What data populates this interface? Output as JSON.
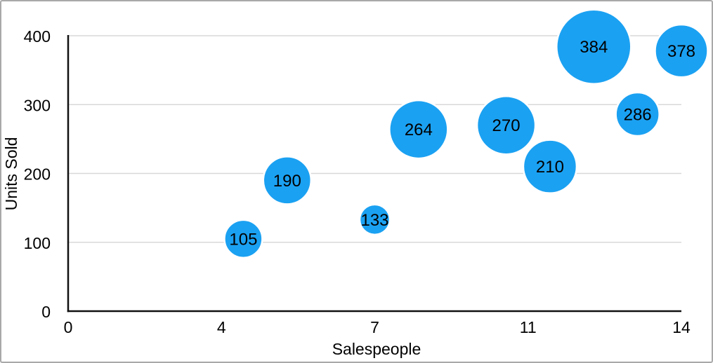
{
  "frame": {
    "background": "#ffffff",
    "border_color": "#a9a9a9"
  },
  "chart_data": {
    "type": "scatter",
    "variant": "bubble",
    "title": "",
    "xlabel": "Salespeople",
    "ylabel": "Units Sold",
    "xlim": [
      0,
      14
    ],
    "ylim": [
      0,
      400
    ],
    "grid": "horizontal",
    "legend": "none",
    "x_ticks": [
      {
        "pos": 0,
        "label": "0"
      },
      {
        "pos": 3.5,
        "label": "4"
      },
      {
        "pos": 7,
        "label": "7"
      },
      {
        "pos": 10.5,
        "label": "11"
      },
      {
        "pos": 14,
        "label": "14"
      }
    ],
    "y_ticks": [
      {
        "pos": 0,
        "label": "0"
      },
      {
        "pos": 100,
        "label": "100"
      },
      {
        "pos": 200,
        "label": "200"
      },
      {
        "pos": 300,
        "label": "300"
      },
      {
        "pos": 400,
        "label": "400"
      }
    ],
    "points": [
      {
        "x": 4,
        "y": 105,
        "label": "105",
        "radius_px": 27
      },
      {
        "x": 5,
        "y": 190,
        "label": "190",
        "radius_px": 34
      },
      {
        "x": 7,
        "y": 133,
        "label": "133",
        "radius_px": 21.5
      },
      {
        "x": 8,
        "y": 264,
        "label": "264",
        "radius_px": 41.5
      },
      {
        "x": 10,
        "y": 270,
        "label": "270",
        "radius_px": 41.5
      },
      {
        "x": 11,
        "y": 210,
        "label": "210",
        "radius_px": 38
      },
      {
        "x": 12,
        "y": 384,
        "label": "384",
        "radius_px": 53
      },
      {
        "x": 13,
        "y": 286,
        "label": "286",
        "radius_px": 31
      },
      {
        "x": 14,
        "y": 378,
        "label": "378",
        "radius_px": 37.5
      }
    ],
    "colors": {
      "bubble_fill": "#1BA1F2",
      "bubble_stroke": "#ffffff",
      "bubble_label": "#000000",
      "gridline": "#d8d8d8",
      "axis_line": "#111111",
      "tick_label": "#000000",
      "axis_title": "#000000"
    }
  }
}
